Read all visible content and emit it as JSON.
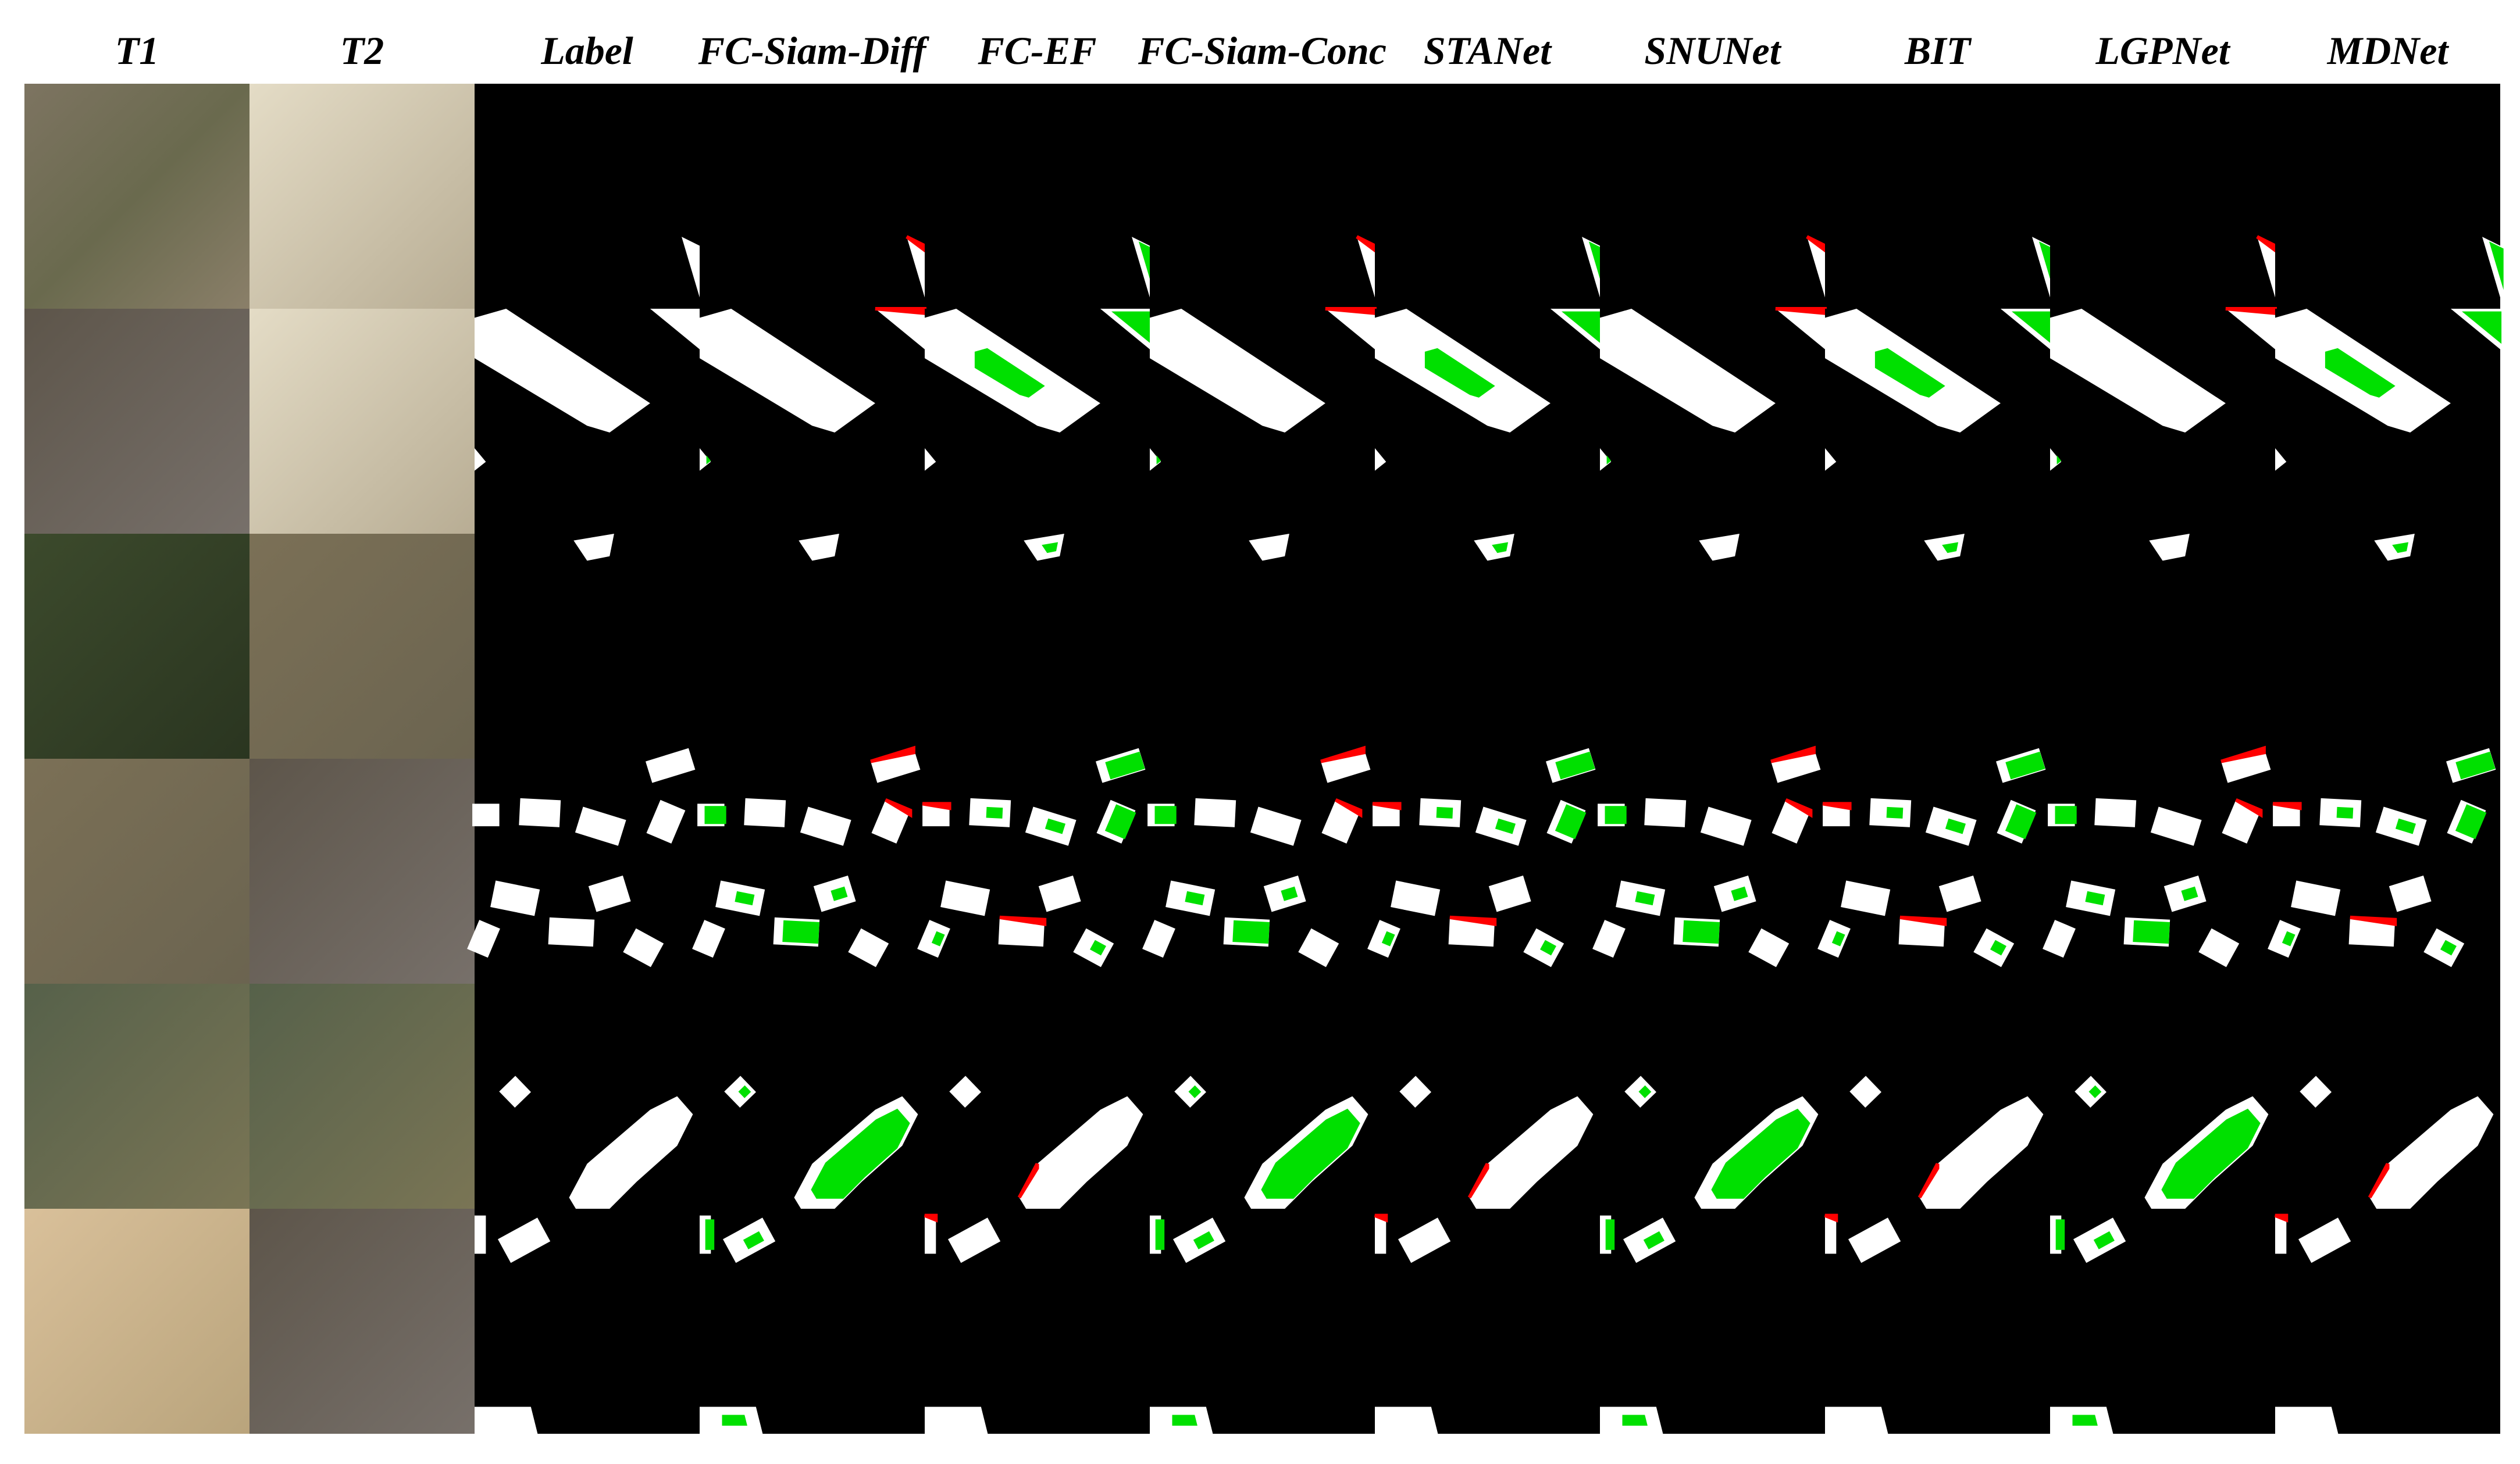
{
  "header": {
    "columns": [
      "T1",
      "T2",
      "Label",
      "FC-Siam-Diff",
      "FC-EF",
      "FC-Siam-Conc",
      "STANet",
      "SNUNet",
      "BIT",
      "LGPNet",
      "MDNet"
    ]
  }
}
